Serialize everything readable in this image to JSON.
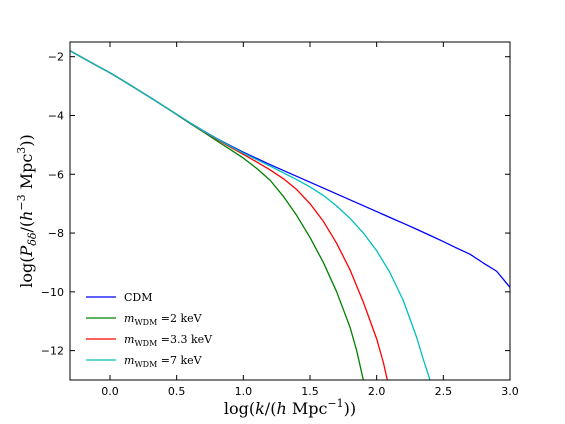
{
  "chart_data": {
    "type": "line",
    "xlabel": "log(k/(h Mpc⁻¹))",
    "ylabel": "log(P_δδ/(h⁻³ Mpc³))",
    "xlim": [
      -0.3,
      3.0
    ],
    "ylim": [
      -13,
      -1.5
    ],
    "x_ticks": [
      0.0,
      0.5,
      1.0,
      1.5,
      2.0,
      2.5,
      3.0
    ],
    "x_tick_labels": [
      "0.0",
      "0.5",
      "1.0",
      "1.5",
      "2.0",
      "2.5",
      "3.0"
    ],
    "y_ticks": [
      -12,
      -10,
      -8,
      -6,
      -4,
      -2
    ],
    "y_tick_labels": [
      "−12",
      "−10",
      "−8",
      "−6",
      "−4",
      "−2"
    ],
    "grid": false,
    "legend_position": "bottom-left",
    "series": [
      {
        "name": "CDM",
        "color": "#0000ff",
        "x": [
          -0.3,
          -0.2,
          -0.1,
          0.0,
          0.1,
          0.2,
          0.3,
          0.4,
          0.5,
          0.6,
          0.7,
          0.8,
          0.9,
          1.0,
          1.1,
          1.2,
          1.3,
          1.4,
          1.5,
          1.6,
          1.7,
          1.8,
          1.9,
          2.0,
          2.1,
          2.2,
          2.3,
          2.4,
          2.5,
          2.6,
          2.7,
          2.8,
          2.9,
          3.0
        ],
        "y": [
          -1.8,
          -2.05,
          -2.3,
          -2.55,
          -2.82,
          -3.1,
          -3.38,
          -3.67,
          -3.96,
          -4.25,
          -4.52,
          -4.78,
          -5.02,
          -5.25,
          -5.46,
          -5.67,
          -5.87,
          -6.07,
          -6.27,
          -6.47,
          -6.67,
          -6.87,
          -7.07,
          -7.27,
          -7.47,
          -7.67,
          -7.87,
          -8.08,
          -8.29,
          -8.51,
          -8.72,
          -9.02,
          -9.3,
          -9.85
        ]
      },
      {
        "name": "m_WDM =2 keV",
        "color": "#008000",
        "x": [
          -0.3,
          -0.2,
          -0.1,
          0.0,
          0.1,
          0.2,
          0.3,
          0.4,
          0.5,
          0.6,
          0.7,
          0.8,
          0.9,
          1.0,
          1.1,
          1.2,
          1.3,
          1.4,
          1.5,
          1.6,
          1.7,
          1.8,
          1.85,
          1.9
        ],
        "y": [
          -1.8,
          -2.05,
          -2.3,
          -2.55,
          -2.82,
          -3.1,
          -3.38,
          -3.67,
          -3.97,
          -4.27,
          -4.56,
          -4.86,
          -5.15,
          -5.45,
          -5.8,
          -6.2,
          -6.75,
          -7.4,
          -8.15,
          -9.0,
          -10.0,
          -11.2,
          -12.0,
          -13.0
        ]
      },
      {
        "name": "m_WDM =3.3 keV",
        "color": "#ff0000",
        "x": [
          -0.3,
          -0.2,
          -0.1,
          0.0,
          0.1,
          0.2,
          0.3,
          0.4,
          0.5,
          0.6,
          0.7,
          0.8,
          0.9,
          1.0,
          1.1,
          1.2,
          1.3,
          1.4,
          1.5,
          1.6,
          1.7,
          1.8,
          1.9,
          2.0,
          2.05,
          2.08
        ],
        "y": [
          -1.8,
          -2.05,
          -2.3,
          -2.55,
          -2.82,
          -3.1,
          -3.38,
          -3.67,
          -3.96,
          -4.26,
          -4.54,
          -4.81,
          -5.07,
          -5.32,
          -5.58,
          -5.85,
          -6.15,
          -6.52,
          -7.0,
          -7.6,
          -8.35,
          -9.25,
          -10.35,
          -11.6,
          -12.4,
          -13.0
        ]
      },
      {
        "name": "m_WDM =7 keV",
        "color": "#00bfbf",
        "x": [
          -0.3,
          -0.2,
          -0.1,
          0.0,
          0.1,
          0.2,
          0.3,
          0.4,
          0.5,
          0.6,
          0.7,
          0.8,
          0.9,
          1.0,
          1.1,
          1.2,
          1.3,
          1.4,
          1.5,
          1.6,
          1.7,
          1.8,
          1.9,
          2.0,
          2.1,
          2.2,
          2.3,
          2.35,
          2.4
        ],
        "y": [
          -1.8,
          -2.05,
          -2.3,
          -2.55,
          -2.82,
          -3.1,
          -3.38,
          -3.67,
          -3.96,
          -4.25,
          -4.53,
          -4.79,
          -5.04,
          -5.28,
          -5.5,
          -5.72,
          -5.95,
          -6.18,
          -6.43,
          -6.72,
          -7.08,
          -7.5,
          -8.0,
          -8.6,
          -9.35,
          -10.3,
          -11.55,
          -12.3,
          -13.0
        ]
      }
    ]
  }
}
